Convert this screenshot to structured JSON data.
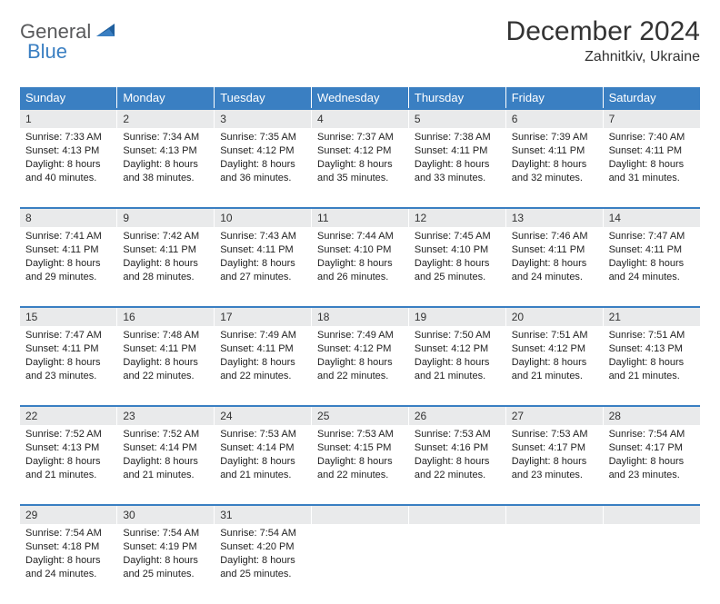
{
  "brand": {
    "text1": "General",
    "text2": "Blue",
    "accent_color": "#3a7fc2",
    "gray_color": "#58595b"
  },
  "title": "December 2024",
  "location": "Zahnitkiv, Ukraine",
  "colors": {
    "header_bg": "#3a7fc2",
    "header_text": "#ffffff",
    "daynum_bg": "#e9eaeb",
    "row_border": "#3a7fc2",
    "text": "#222222",
    "page_bg": "#ffffff"
  },
  "day_headers": [
    "Sunday",
    "Monday",
    "Tuesday",
    "Wednesday",
    "Thursday",
    "Friday",
    "Saturday"
  ],
  "weeks": [
    [
      {
        "num": "1",
        "sunrise": "Sunrise: 7:33 AM",
        "sunset": "Sunset: 4:13 PM",
        "day1": "Daylight: 8 hours",
        "day2": "and 40 minutes."
      },
      {
        "num": "2",
        "sunrise": "Sunrise: 7:34 AM",
        "sunset": "Sunset: 4:13 PM",
        "day1": "Daylight: 8 hours",
        "day2": "and 38 minutes."
      },
      {
        "num": "3",
        "sunrise": "Sunrise: 7:35 AM",
        "sunset": "Sunset: 4:12 PM",
        "day1": "Daylight: 8 hours",
        "day2": "and 36 minutes."
      },
      {
        "num": "4",
        "sunrise": "Sunrise: 7:37 AM",
        "sunset": "Sunset: 4:12 PM",
        "day1": "Daylight: 8 hours",
        "day2": "and 35 minutes."
      },
      {
        "num": "5",
        "sunrise": "Sunrise: 7:38 AM",
        "sunset": "Sunset: 4:11 PM",
        "day1": "Daylight: 8 hours",
        "day2": "and 33 minutes."
      },
      {
        "num": "6",
        "sunrise": "Sunrise: 7:39 AM",
        "sunset": "Sunset: 4:11 PM",
        "day1": "Daylight: 8 hours",
        "day2": "and 32 minutes."
      },
      {
        "num": "7",
        "sunrise": "Sunrise: 7:40 AM",
        "sunset": "Sunset: 4:11 PM",
        "day1": "Daylight: 8 hours",
        "day2": "and 31 minutes."
      }
    ],
    [
      {
        "num": "8",
        "sunrise": "Sunrise: 7:41 AM",
        "sunset": "Sunset: 4:11 PM",
        "day1": "Daylight: 8 hours",
        "day2": "and 29 minutes."
      },
      {
        "num": "9",
        "sunrise": "Sunrise: 7:42 AM",
        "sunset": "Sunset: 4:11 PM",
        "day1": "Daylight: 8 hours",
        "day2": "and 28 minutes."
      },
      {
        "num": "10",
        "sunrise": "Sunrise: 7:43 AM",
        "sunset": "Sunset: 4:11 PM",
        "day1": "Daylight: 8 hours",
        "day2": "and 27 minutes."
      },
      {
        "num": "11",
        "sunrise": "Sunrise: 7:44 AM",
        "sunset": "Sunset: 4:10 PM",
        "day1": "Daylight: 8 hours",
        "day2": "and 26 minutes."
      },
      {
        "num": "12",
        "sunrise": "Sunrise: 7:45 AM",
        "sunset": "Sunset: 4:10 PM",
        "day1": "Daylight: 8 hours",
        "day2": "and 25 minutes."
      },
      {
        "num": "13",
        "sunrise": "Sunrise: 7:46 AM",
        "sunset": "Sunset: 4:11 PM",
        "day1": "Daylight: 8 hours",
        "day2": "and 24 minutes."
      },
      {
        "num": "14",
        "sunrise": "Sunrise: 7:47 AM",
        "sunset": "Sunset: 4:11 PM",
        "day1": "Daylight: 8 hours",
        "day2": "and 24 minutes."
      }
    ],
    [
      {
        "num": "15",
        "sunrise": "Sunrise: 7:47 AM",
        "sunset": "Sunset: 4:11 PM",
        "day1": "Daylight: 8 hours",
        "day2": "and 23 minutes."
      },
      {
        "num": "16",
        "sunrise": "Sunrise: 7:48 AM",
        "sunset": "Sunset: 4:11 PM",
        "day1": "Daylight: 8 hours",
        "day2": "and 22 minutes."
      },
      {
        "num": "17",
        "sunrise": "Sunrise: 7:49 AM",
        "sunset": "Sunset: 4:11 PM",
        "day1": "Daylight: 8 hours",
        "day2": "and 22 minutes."
      },
      {
        "num": "18",
        "sunrise": "Sunrise: 7:49 AM",
        "sunset": "Sunset: 4:12 PM",
        "day1": "Daylight: 8 hours",
        "day2": "and 22 minutes."
      },
      {
        "num": "19",
        "sunrise": "Sunrise: 7:50 AM",
        "sunset": "Sunset: 4:12 PM",
        "day1": "Daylight: 8 hours",
        "day2": "and 21 minutes."
      },
      {
        "num": "20",
        "sunrise": "Sunrise: 7:51 AM",
        "sunset": "Sunset: 4:12 PM",
        "day1": "Daylight: 8 hours",
        "day2": "and 21 minutes."
      },
      {
        "num": "21",
        "sunrise": "Sunrise: 7:51 AM",
        "sunset": "Sunset: 4:13 PM",
        "day1": "Daylight: 8 hours",
        "day2": "and 21 minutes."
      }
    ],
    [
      {
        "num": "22",
        "sunrise": "Sunrise: 7:52 AM",
        "sunset": "Sunset: 4:13 PM",
        "day1": "Daylight: 8 hours",
        "day2": "and 21 minutes."
      },
      {
        "num": "23",
        "sunrise": "Sunrise: 7:52 AM",
        "sunset": "Sunset: 4:14 PM",
        "day1": "Daylight: 8 hours",
        "day2": "and 21 minutes."
      },
      {
        "num": "24",
        "sunrise": "Sunrise: 7:53 AM",
        "sunset": "Sunset: 4:14 PM",
        "day1": "Daylight: 8 hours",
        "day2": "and 21 minutes."
      },
      {
        "num": "25",
        "sunrise": "Sunrise: 7:53 AM",
        "sunset": "Sunset: 4:15 PM",
        "day1": "Daylight: 8 hours",
        "day2": "and 22 minutes."
      },
      {
        "num": "26",
        "sunrise": "Sunrise: 7:53 AM",
        "sunset": "Sunset: 4:16 PM",
        "day1": "Daylight: 8 hours",
        "day2": "and 22 minutes."
      },
      {
        "num": "27",
        "sunrise": "Sunrise: 7:53 AM",
        "sunset": "Sunset: 4:17 PM",
        "day1": "Daylight: 8 hours",
        "day2": "and 23 minutes."
      },
      {
        "num": "28",
        "sunrise": "Sunrise: 7:54 AM",
        "sunset": "Sunset: 4:17 PM",
        "day1": "Daylight: 8 hours",
        "day2": "and 23 minutes."
      }
    ],
    [
      {
        "num": "29",
        "sunrise": "Sunrise: 7:54 AM",
        "sunset": "Sunset: 4:18 PM",
        "day1": "Daylight: 8 hours",
        "day2": "and 24 minutes."
      },
      {
        "num": "30",
        "sunrise": "Sunrise: 7:54 AM",
        "sunset": "Sunset: 4:19 PM",
        "day1": "Daylight: 8 hours",
        "day2": "and 25 minutes."
      },
      {
        "num": "31",
        "sunrise": "Sunrise: 7:54 AM",
        "sunset": "Sunset: 4:20 PM",
        "day1": "Daylight: 8 hours",
        "day2": "and 25 minutes."
      },
      null,
      null,
      null,
      null
    ]
  ]
}
